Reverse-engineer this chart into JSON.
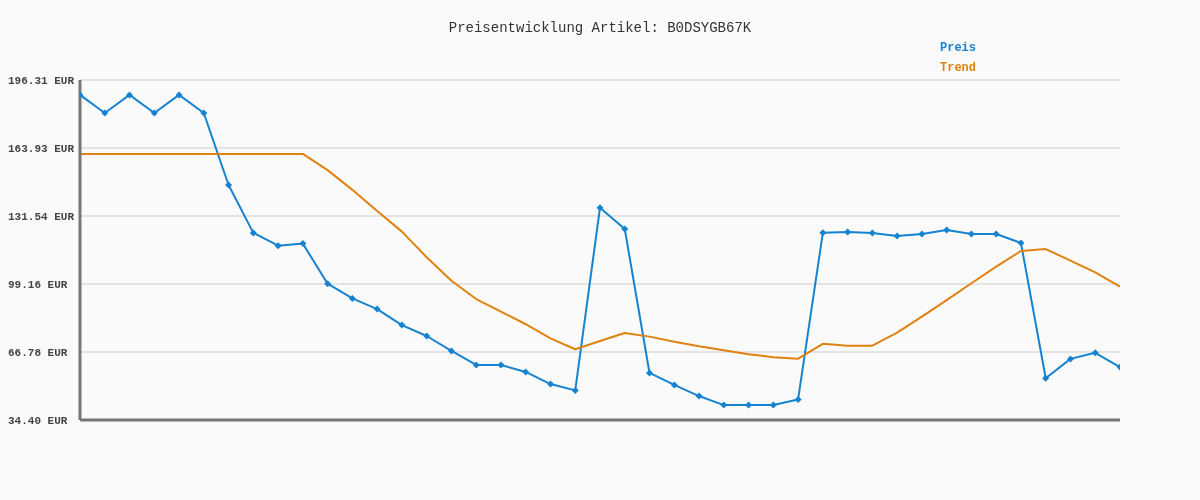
{
  "chart_data": {
    "type": "line",
    "title": "Preisentwicklung Artikel: B0DSYGB67K",
    "categories": [
      null,
      null,
      null,
      null,
      null,
      null,
      null,
      null,
      null,
      null,
      null,
      null,
      null,
      null,
      null,
      null,
      null,
      null,
      null,
      null,
      null,
      null,
      null,
      null,
      null,
      null,
      null,
      null,
      null,
      null,
      null,
      null,
      null,
      null,
      null,
      null,
      null,
      null,
      null,
      null,
      null,
      null,
      null
    ],
    "series": [
      {
        "name": "Preis",
        "color": "#1583d0",
        "marker": "diamond",
        "values": [
          189.2,
          180.6,
          189.2,
          180.6,
          189.2,
          180.6,
          146.3,
          123.5,
          117.4,
          118.4,
          99.3,
          92.3,
          87.2,
          79.6,
          74.4,
          67.3,
          60.6,
          60.6,
          57.3,
          51.5,
          48.5,
          135.5,
          125.3,
          56.8,
          51.1,
          45.8,
          41.5,
          41.5,
          41.5,
          44.2,
          123.6,
          123.9,
          123.5,
          122.0,
          123.0,
          124.9,
          123.0,
          123.0,
          118.7,
          54.3,
          63.5,
          66.4,
          59.6
        ]
      },
      {
        "name": "Trend",
        "color": "#e0820f",
        "marker": "none",
        "values": [
          161.1,
          161.1,
          161.1,
          161.1,
          161.1,
          161.1,
          161.1,
          161.1,
          161.1,
          161.1,
          153.4,
          144.0,
          133.9,
          124.1,
          111.9,
          100.7,
          92.0,
          86.0,
          80.0,
          73.3,
          68.1,
          72.0,
          75.8,
          74.1,
          71.7,
          69.5,
          67.6,
          65.7,
          64.3,
          63.6,
          70.7,
          69.8,
          69.8,
          76.0,
          83.6,
          91.5,
          99.5,
          107.4,
          114.9,
          115.8,
          110.3,
          104.7,
          97.9
        ]
      }
    ],
    "ylim": [
      34.4,
      196.31
    ],
    "yticks": [
      {
        "value": 34.4,
        "label": "34.40 EUR"
      },
      {
        "value": 66.78,
        "label": "66.78 EUR"
      },
      {
        "value": 99.16,
        "label": "99.16 EUR"
      },
      {
        "value": 131.54,
        "label": "131.54 EUR"
      },
      {
        "value": 163.93,
        "label": "163.93 EUR"
      },
      {
        "value": 196.31,
        "label": "196.31 EUR"
      }
    ],
    "grid": "y",
    "legend": "top right"
  }
}
